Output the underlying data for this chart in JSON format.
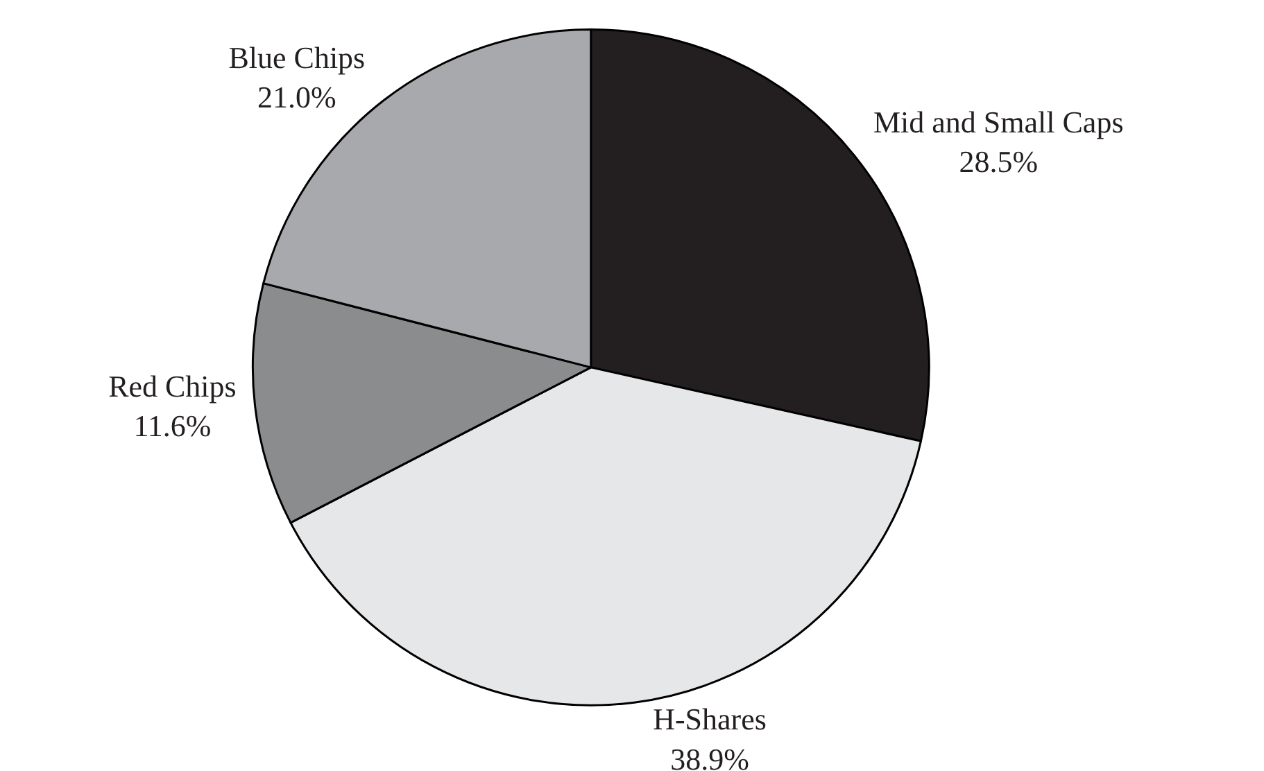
{
  "chart_data": {
    "type": "pie",
    "categories": [
      "Mid and Small Caps",
      "H-Shares",
      "Red Chips",
      "Blue Chips"
    ],
    "values": [
      28.5,
      38.9,
      11.6,
      21.0
    ],
    "value_labels": [
      "28.5%",
      "38.9%",
      "11.6%",
      "21.0%"
    ],
    "colors": [
      "#231f20",
      "#e6e7e8",
      "#8a8c8e",
      "#a7a9ac"
    ],
    "legend": false
  }
}
